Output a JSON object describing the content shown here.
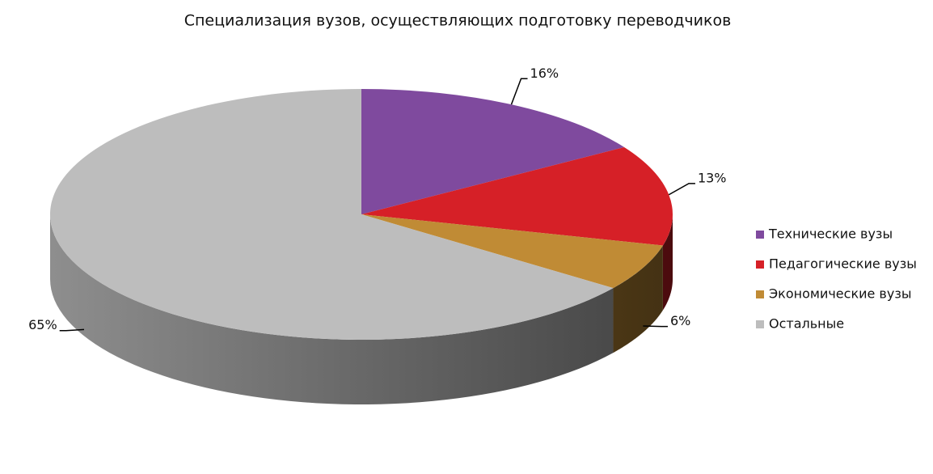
{
  "chart_data": {
    "type": "pie",
    "title": "Специализация вузов, осуществляющих подготовку переводчиков",
    "categories": [
      "Технические вузы",
      "Педагогические вузы",
      "Экономические вузы",
      "Остальные"
    ],
    "values": [
      16,
      13,
      6,
      65
    ],
    "value_labels": [
      "16%",
      "13%",
      "6%",
      "65%"
    ],
    "colors": [
      "#7f4a9e",
      "#d62027",
      "#c08b35",
      "#bdbdbd"
    ],
    "legend": "right"
  }
}
